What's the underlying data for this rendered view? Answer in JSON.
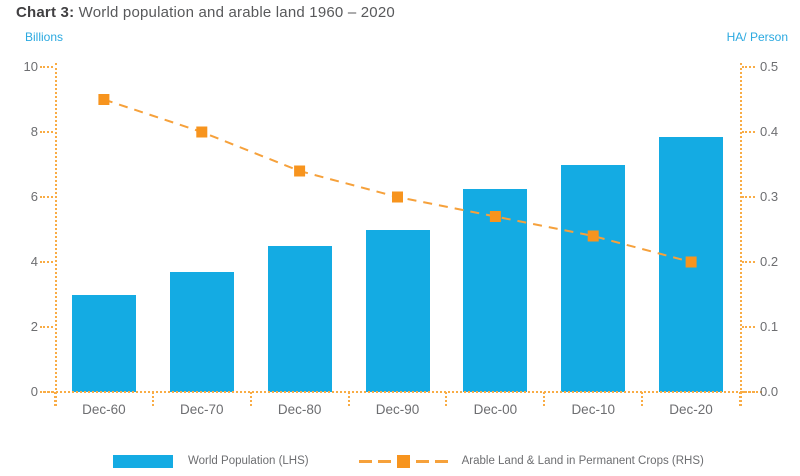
{
  "title": {
    "prefix": "Chart 3:",
    "text": " World population and arable land 1960 – 2020"
  },
  "axes": {
    "left_unit": "Billions",
    "right_unit": "HA/ Person",
    "left_ticks": [
      "10",
      "8",
      "6",
      "4",
      "2",
      "0"
    ],
    "right_ticks": [
      "0.5",
      "0.4",
      "0.3",
      "0.2",
      "0.1",
      "0.0"
    ]
  },
  "chart_data": {
    "type": "bar",
    "title": "Chart 3: World population and arable land 1960 – 2020",
    "categories": [
      "Dec-60",
      "Dec-70",
      "Dec-80",
      "Dec-90",
      "Dec-00",
      "Dec-10",
      "Dec-20"
    ],
    "series": [
      {
        "name": "World Population (LHS)",
        "type": "bar",
        "axis": "left",
        "values": [
          3.0,
          3.7,
          4.5,
          5.0,
          6.25,
          7.0,
          7.85
        ]
      },
      {
        "name": "Arable Land & Land in Permanent Crops (RHS)",
        "type": "line",
        "axis": "right",
        "values": [
          0.45,
          0.4,
          0.34,
          0.3,
          0.27,
          0.24,
          0.2
        ]
      }
    ],
    "left_axis": {
      "label": "Billions",
      "min": 0,
      "max": 10,
      "tick_step": 2
    },
    "right_axis": {
      "label": "HA/ Person",
      "min": 0,
      "max": 0.5,
      "tick_step": 0.1
    },
    "grid": false,
    "legend_position": "bottom"
  },
  "legend": {
    "items": [
      {
        "label": "World Population (LHS)",
        "swatch": "bar"
      },
      {
        "label": "Arable Land & Land in Permanent Crops (RHS)",
        "swatch": "dashed-line-square"
      }
    ]
  },
  "colors": {
    "bar_blue": "#14abe3",
    "line_orange": "#f6a13b",
    "marker_orange": "#f7941e",
    "axis_dots_orange": "#f9ac45",
    "tick_text_gray": "#6d6e71",
    "unit_text_blue": "#2ba9e0",
    "title_gray": "#58595b"
  }
}
